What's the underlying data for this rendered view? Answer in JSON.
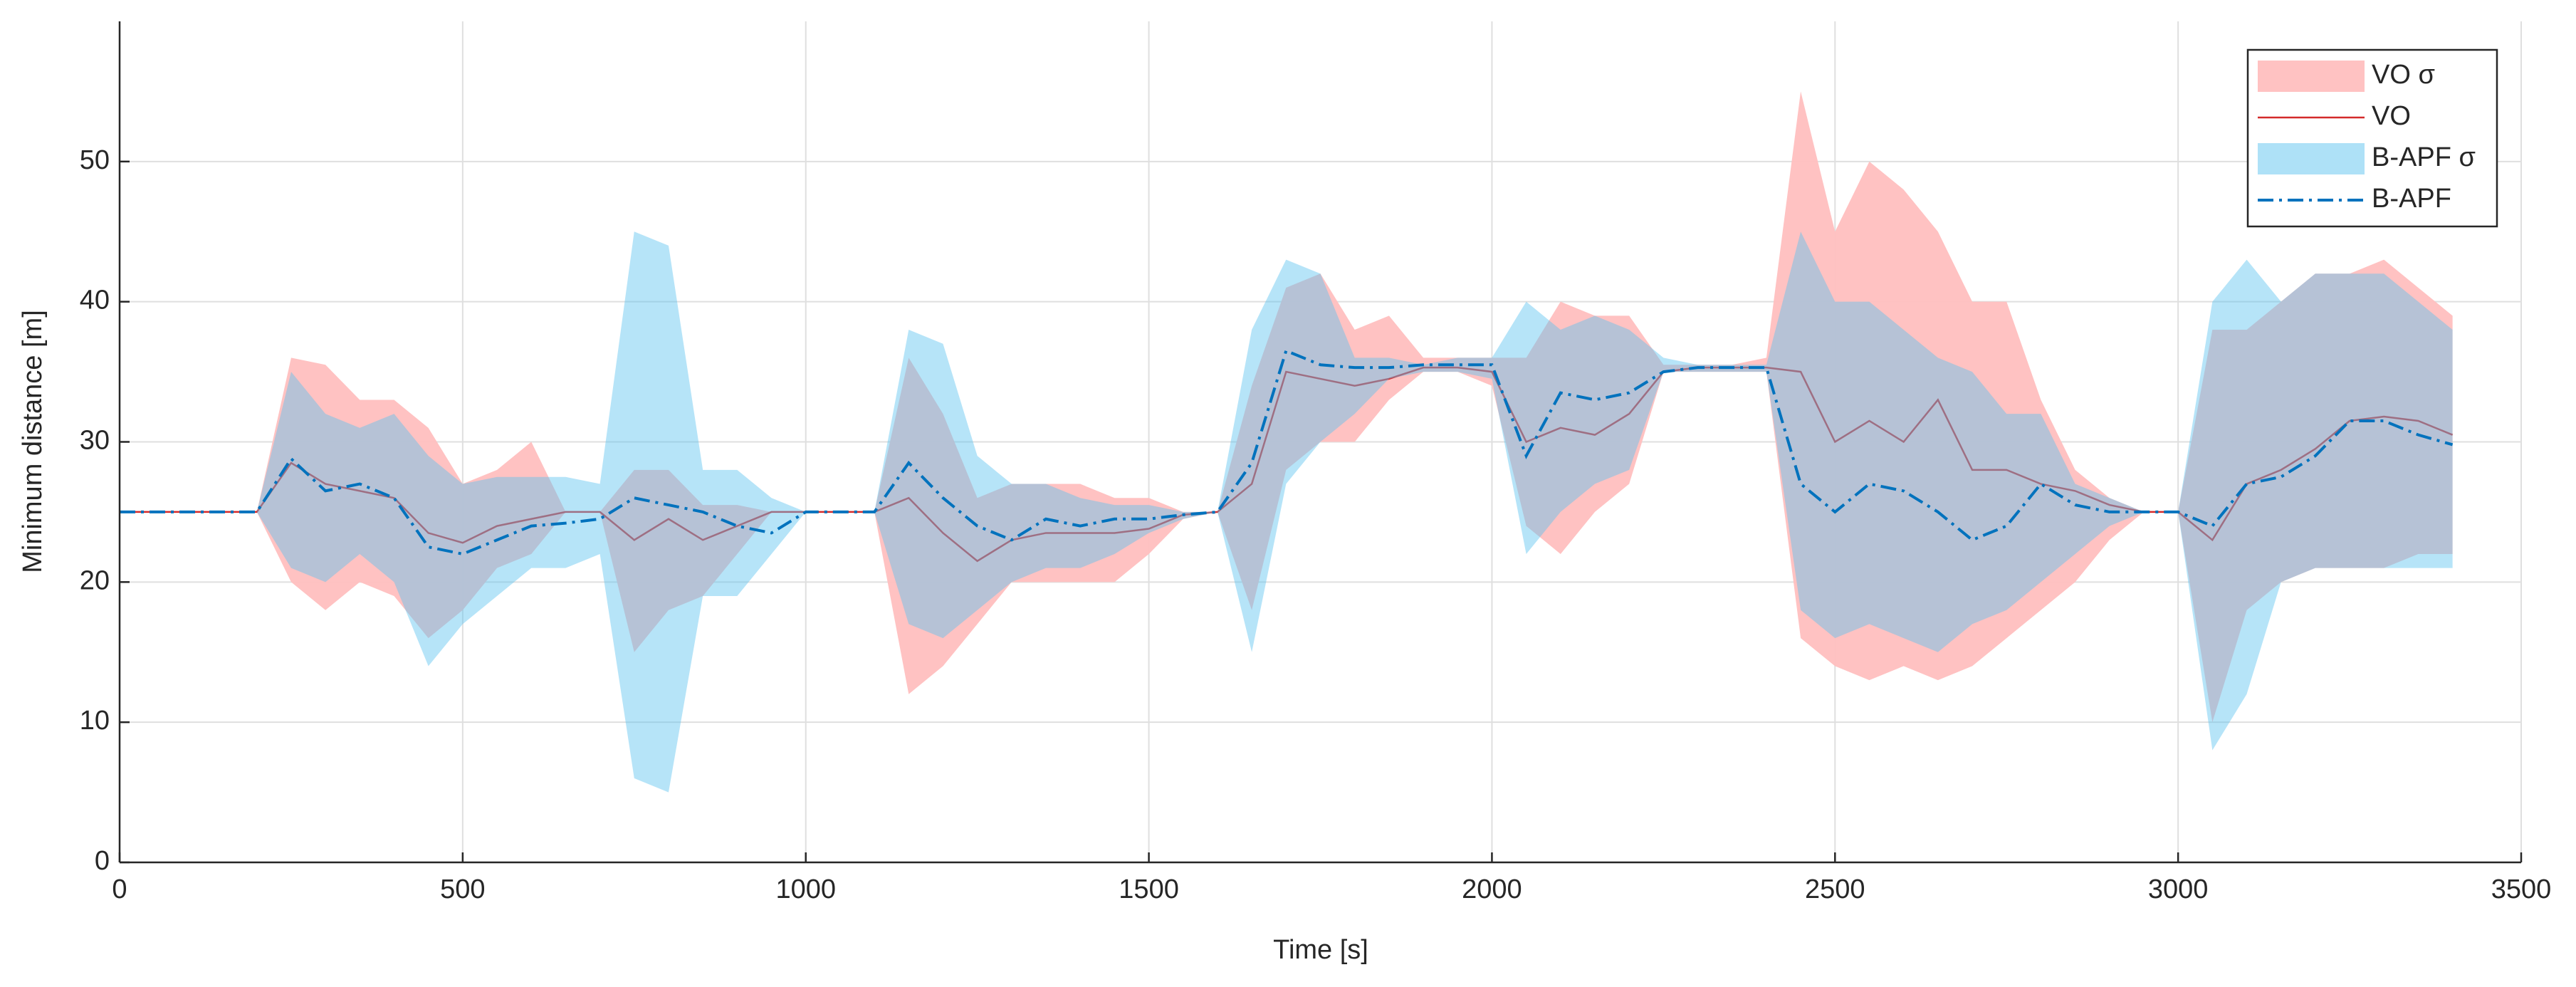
{
  "chart_data": {
    "type": "line",
    "xlabel": "Time [s]",
    "ylabel": "Minimum distance [m]",
    "xlim": [
      0,
      3500
    ],
    "xticks": [
      0,
      500,
      1000,
      1500,
      2000,
      2500,
      3000,
      3500
    ],
    "ylim": [
      0,
      60
    ],
    "yticks": [
      0,
      10,
      20,
      30,
      40,
      50
    ],
    "grid": true,
    "legend": "upper right",
    "x": [
      0,
      50,
      100,
      150,
      200,
      250,
      300,
      350,
      400,
      450,
      500,
      550,
      600,
      650,
      700,
      750,
      800,
      850,
      900,
      950,
      1000,
      1050,
      1100,
      1150,
      1200,
      1250,
      1300,
      1350,
      1400,
      1450,
      1500,
      1550,
      1600,
      1650,
      1700,
      1750,
      1800,
      1850,
      1900,
      1950,
      2000,
      2050,
      2100,
      2150,
      2200,
      2250,
      2300,
      2350,
      2400,
      2450,
      2500,
      2550,
      2600,
      2650,
      2700,
      2750,
      2800,
      2850,
      2900,
      2950,
      3000,
      3050,
      3100,
      3150,
      3200,
      3250,
      3300,
      3350,
      3400
    ],
    "series": [
      {
        "name": "VO σ",
        "style": "band",
        "color": "#ffbfbf",
        "upper": [
          25,
          25,
          25,
          25,
          25,
          36,
          35.5,
          33,
          33,
          31,
          27,
          28,
          30,
          25,
          25,
          28,
          28,
          25.5,
          25.5,
          25,
          25,
          25,
          25,
          36,
          32,
          26,
          27,
          27,
          27,
          26,
          26,
          25,
          25,
          34,
          41,
          42,
          38,
          39,
          36,
          36,
          36,
          36,
          40,
          39,
          39,
          35.5,
          35.5,
          35.5,
          36,
          55,
          45,
          50,
          48,
          45,
          40,
          40,
          33,
          28,
          26,
          25,
          25,
          38,
          38,
          40,
          42,
          42,
          43,
          41,
          39
        ],
        "lower": [
          25,
          25,
          25,
          25,
          25,
          20,
          18,
          20,
          19,
          16,
          18,
          21,
          22,
          25,
          25,
          15,
          18,
          19,
          22,
          25,
          25,
          25,
          25,
          12,
          14,
          17,
          20,
          20,
          20,
          20,
          22,
          24.5,
          25,
          18,
          28,
          30,
          30,
          33,
          35,
          35,
          34,
          24,
          22,
          25,
          27,
          35,
          35,
          35,
          35,
          16,
          14,
          13,
          14,
          13,
          14,
          16,
          18,
          20,
          23,
          25,
          25,
          10,
          18,
          20,
          21,
          21,
          21,
          22,
          22
        ]
      },
      {
        "name": "VO",
        "style": "solid",
        "color": "#d42a2a",
        "values": [
          25,
          25,
          25,
          25,
          25,
          28.5,
          27,
          26.5,
          26,
          23.5,
          22.8,
          24,
          24.5,
          25,
          25,
          23,
          24.5,
          23,
          24,
          25,
          25,
          25,
          25,
          26,
          23.5,
          21.5,
          23,
          23.5,
          23.5,
          23.5,
          23.8,
          24.8,
          25,
          27,
          35,
          34.5,
          34,
          34.5,
          35.3,
          35.3,
          35,
          30,
          31,
          30.5,
          32,
          35,
          35.3,
          35.3,
          35.3,
          35,
          30,
          31.5,
          30,
          33,
          28,
          28,
          27,
          26.5,
          25.5,
          25,
          25,
          23,
          27,
          28,
          29.5,
          31.5,
          31.8,
          31.5,
          30.5
        ]
      },
      {
        "name": "B-APF σ",
        "style": "band",
        "color": "#5ec4f0",
        "upper": [
          25,
          25,
          25,
          25,
          25,
          35,
          32,
          31,
          32,
          29,
          27,
          27.5,
          27.5,
          27.5,
          27,
          45,
          44,
          28,
          28,
          26,
          25,
          25,
          25,
          38,
          37,
          29,
          27,
          27,
          26,
          25.5,
          25.5,
          25,
          25,
          38,
          43,
          42,
          36,
          36,
          35.5,
          36,
          36,
          40,
          38,
          39,
          38,
          36,
          35.5,
          35.5,
          35.5,
          45,
          40,
          40,
          38,
          36,
          35,
          32,
          32,
          27,
          26,
          25,
          25,
          40,
          43,
          40,
          42,
          42,
          42,
          40,
          38
        ],
        "lower": [
          25,
          25,
          25,
          25,
          25,
          21,
          20,
          22,
          20,
          14,
          17,
          19,
          21,
          21,
          22,
          6,
          5,
          19,
          19,
          22,
          25,
          25,
          25,
          17,
          16,
          18,
          20,
          21,
          21,
          22,
          23.5,
          24.5,
          25,
          15,
          27,
          30,
          32,
          34.5,
          35,
          35,
          34.5,
          22,
          25,
          27,
          28,
          35,
          35,
          35,
          35,
          18,
          16,
          17,
          16,
          15,
          17,
          18,
          20,
          22,
          24,
          25,
          25,
          8,
          12,
          20,
          21,
          21,
          21,
          21,
          21
        ]
      },
      {
        "name": "B-APF",
        "style": "dashdot",
        "color": "#0072bd",
        "values": [
          25,
          25,
          25,
          25,
          25,
          28.8,
          26.5,
          27,
          26,
          22.5,
          22,
          23,
          24,
          24.2,
          24.5,
          26,
          25.5,
          25,
          24,
          23.5,
          25,
          25,
          25,
          28.5,
          26,
          24,
          23,
          24.5,
          24,
          24.5,
          24.5,
          24.8,
          25,
          28.5,
          36.5,
          35.5,
          35.3,
          35.3,
          35.5,
          35.5,
          35.5,
          29,
          33.5,
          33,
          33.5,
          35,
          35.3,
          35.3,
          35.3,
          27,
          25,
          27,
          26.5,
          25,
          23,
          24,
          27,
          25.5,
          25,
          25,
          25,
          24,
          27,
          27.5,
          29,
          31.5,
          31.5,
          30.5,
          29.8
        ]
      }
    ]
  }
}
